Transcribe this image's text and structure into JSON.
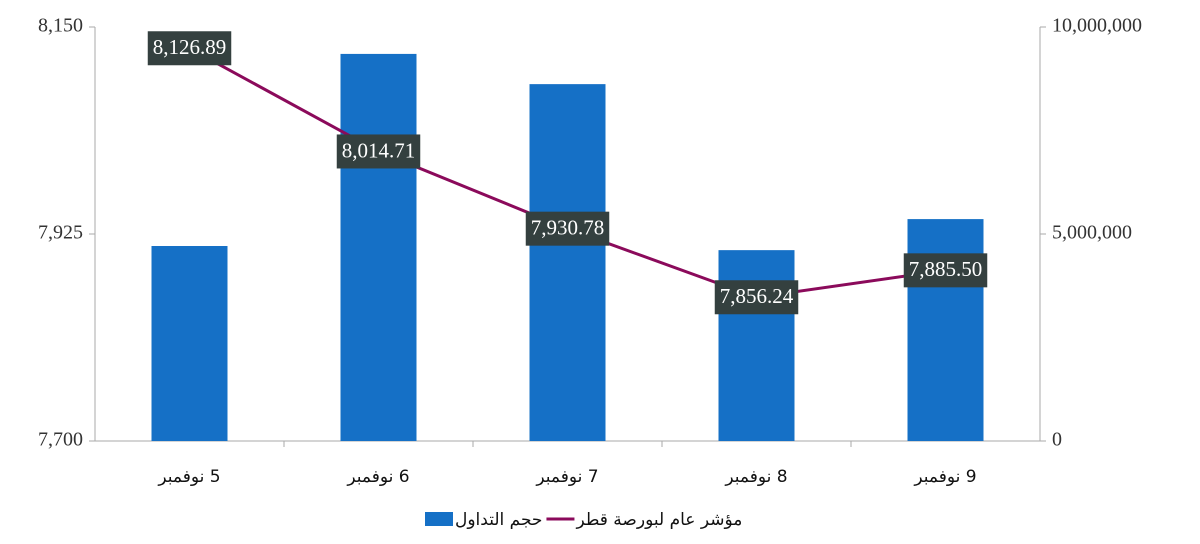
{
  "chart_data": {
    "type": "bar_line",
    "categories": [
      "5 نوفمبر",
      "6 نوفمبر",
      "7 نوفمبر",
      "8 نوفمبر",
      "9 نوفمبر"
    ],
    "series": [
      {
        "name": "حجم التداول",
        "type": "bar",
        "axis": "y2",
        "color": "#1570c6",
        "values": [
          4710000,
          9350000,
          8620000,
          4610000,
          5360000
        ]
      },
      {
        "name": "مؤشر عام لبورصة قطر",
        "type": "line",
        "axis": "y",
        "color": "#8b0a5b",
        "values": [
          8126.89,
          8014.71,
          7930.78,
          7856.24,
          7885.5
        ],
        "value_labels": [
          "8,126.89",
          "8,014.71",
          "7,930.78",
          "7,856.24",
          "7,885.50"
        ]
      }
    ],
    "ylim": [
      7700,
      8150
    ],
    "yticks": [
      {
        "value": 7700,
        "label": "7,700"
      },
      {
        "value": 7925,
        "label": "7,925"
      },
      {
        "value": 8150,
        "label": "8,150"
      }
    ],
    "y2lim": [
      0,
      10000000
    ],
    "y2ticks": [
      0,
      {
        "value": 5000000,
        "label": "5,000,000"
      },
      {
        "value": 10000000,
        "label": "10,000,000"
      }
    ]
  }
}
